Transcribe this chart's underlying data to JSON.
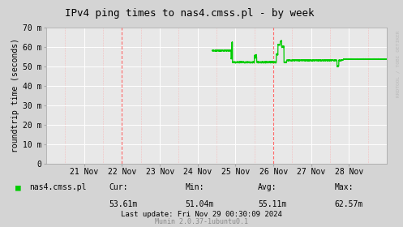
{
  "title": "IPv4 ping times to nas4.cmss.pl - by week",
  "ylabel": "roundtrip time (seconds)",
  "bg_color": "#d4d4d4",
  "plot_bg_color": "#e8e8e8",
  "line_color": "#00cc00",
  "ylim": [
    0,
    70
  ],
  "yticks": [
    0,
    10,
    20,
    30,
    40,
    50,
    60,
    70
  ],
  "ytick_labels": [
    "0",
    "10 m",
    "20 m",
    "30 m",
    "40 m",
    "50 m",
    "60 m",
    "70 m"
  ],
  "xtick_positions": [
    1,
    2,
    3,
    4,
    5,
    6,
    7,
    8
  ],
  "xtick_labels": [
    "21 Nov",
    "22 Nov",
    "23 Nov",
    "24 Nov",
    "25 Nov",
    "26 Nov",
    "27 Nov",
    "28 Nov"
  ],
  "legend_label": "nas4.cmss.pl",
  "cur": "53.61m",
  "min": "51.04m",
  "avg": "55.11m",
  "max": "62.57m",
  "footer": "Last update: Fri Nov 29 00:30:09 2024",
  "munin_version": "Munin 2.0.37-1ubuntu0.1",
  "rrdtool_text": "RRDTOOL / TOBI OETIKER",
  "vline_positions": [
    2,
    6
  ],
  "vline_color": "#ff4444"
}
